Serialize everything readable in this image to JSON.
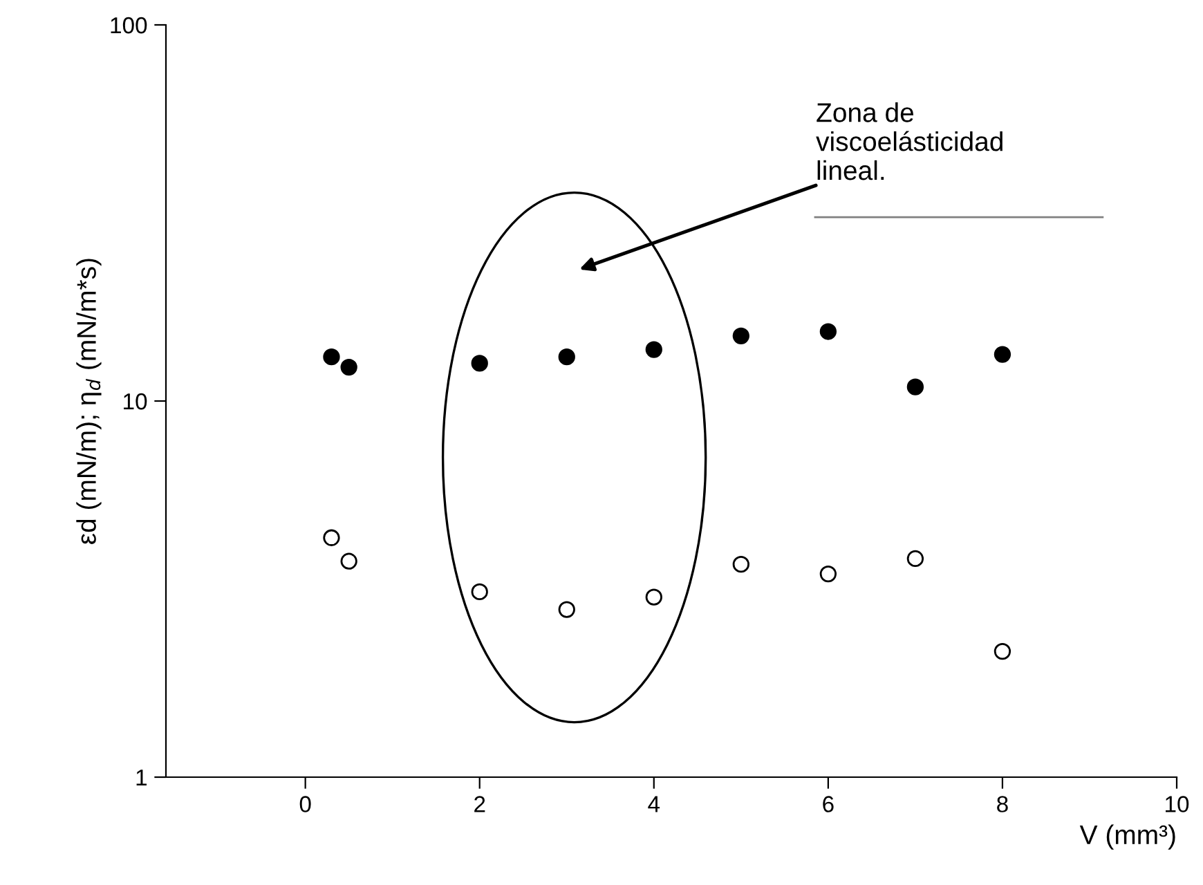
{
  "chart_data": {
    "type": "scatter",
    "xlabel": "V (mm³)",
    "ylabel": "εd (mN/m); η$_{d}$ (mN/m*s)",
    "x": [
      0.3,
      0.5,
      2,
      3,
      4,
      5,
      6,
      7,
      8
    ],
    "series": [
      {
        "color": "#000000",
        "values": [
          13.1,
          12.3,
          12.6,
          13.1,
          13.7,
          14.9,
          15.3,
          10.9,
          13.3
        ]
      },
      {
        "color": "#ffffff",
        "values": [
          4.33,
          3.75,
          3.11,
          2.79,
          3.01,
          3.68,
          3.47,
          3.81,
          2.16
        ]
      },
      {
        "type": "line",
        "marker": "none",
        "color": "#808080",
        "x": [
          5.85,
          9.15
        ],
        "values": [
          30.8,
          30.8
        ]
      }
    ],
    "log": "y",
    "xlim": [
      -1.6,
      10
    ],
    "xticks": [
      0,
      2,
      4,
      6,
      8,
      10
    ],
    "ylim": [
      1,
      100
    ],
    "yticks": [
      1,
      10,
      100
    ],
    "marker": "circle",
    "grid": false,
    "legend": false,
    "annotations": [
      "Zona de\nviscoelásticidad\nlineal."
    ]
  }
}
